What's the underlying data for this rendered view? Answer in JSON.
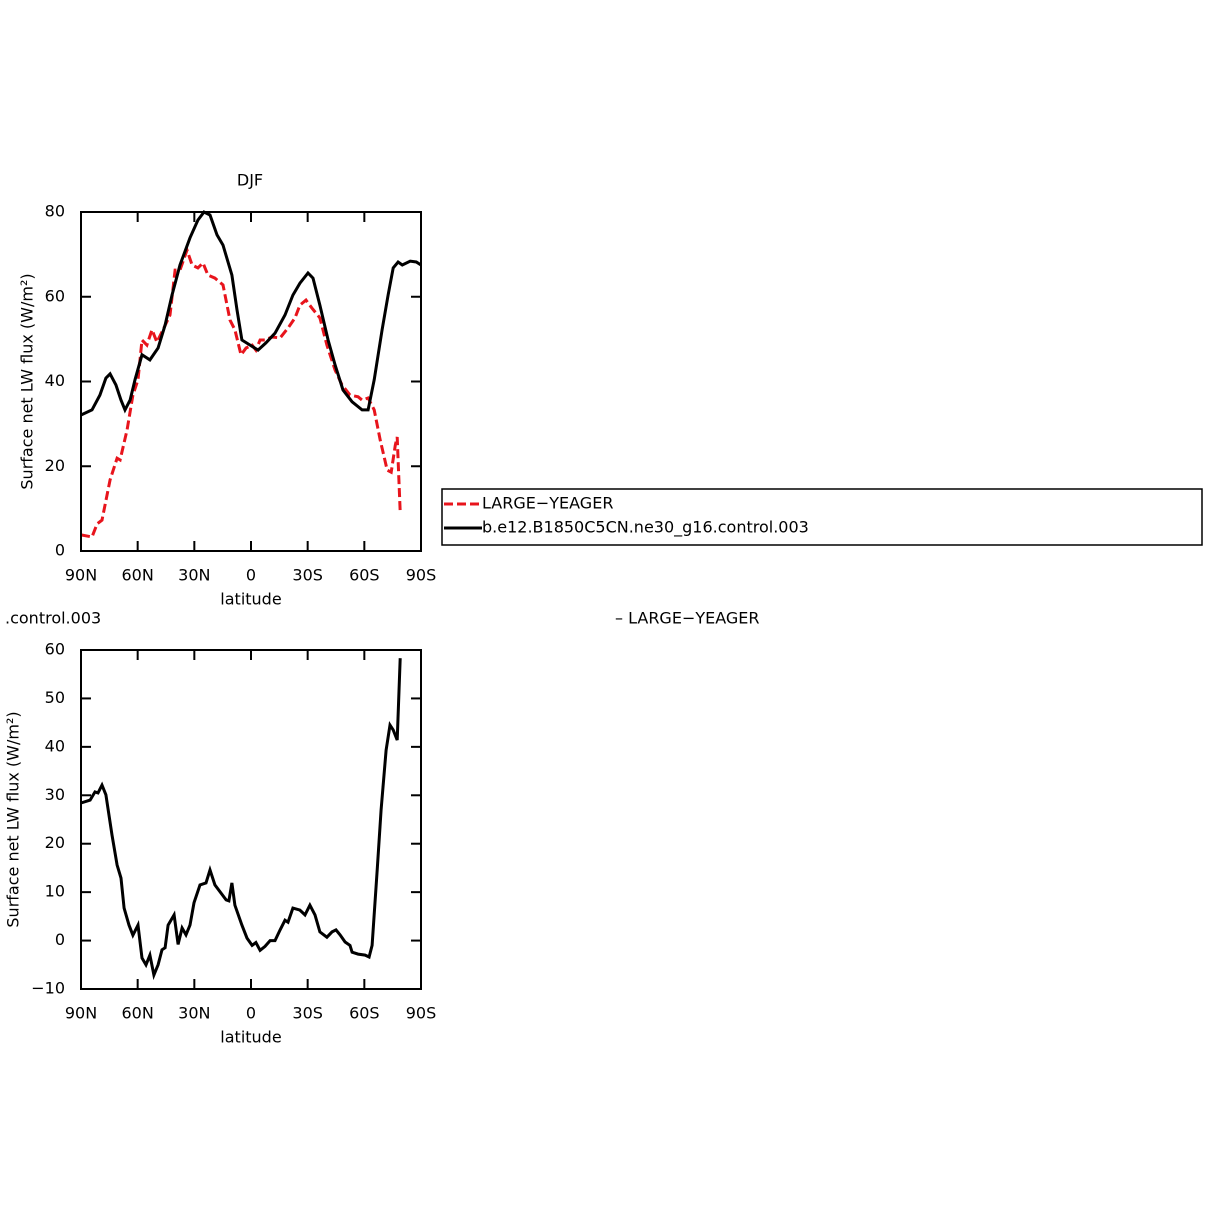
{
  "chart_data": [
    {
      "type": "line",
      "title": "DJF",
      "xlabel": "latitude",
      "ylabel": "Surface net LW flux (W/m²)",
      "xlim": [
        90,
        -90
      ],
      "xticks": [
        {
          "value": 90,
          "label": "90N"
        },
        {
          "value": 60,
          "label": "60N"
        },
        {
          "value": 30,
          "label": "30N"
        },
        0,
        {
          "value": -30,
          "label": "30S"
        },
        {
          "value": -60,
          "label": "60S"
        },
        {
          "value": -90,
          "label": "90S"
        }
      ],
      "ylim": [
        0,
        80
      ],
      "yticks": [
        0,
        20,
        40,
        60,
        80
      ],
      "legend": "right",
      "series": [
        {
          "name": "LARGE−YEAGER",
          "color": "#e8141c",
          "line_style": "dashed",
          "x": [
            90,
            84.2,
            81.5,
            78.9,
            74.6,
            70.9,
            69.3,
            65.6,
            62.5,
            59.8,
            57.7,
            55.1,
            52.4,
            49.8,
            46.6,
            42.9,
            40.2,
            37.6,
            33.9,
            31.2,
            28.1,
            25.4,
            22.8,
            19.1,
            14.8,
            11.1,
            8.5,
            5.3,
            2.6,
            -0.6,
            -2.6,
            -4.8,
            -7.4,
            -11.1,
            -15.4,
            -19.6,
            -23.3,
            -25.9,
            -29.1,
            -32.3,
            -36.5,
            -40.2,
            -44.5,
            -48.2,
            -52.4,
            -56.7,
            -58.8,
            -62,
            -65.2,
            -68.4,
            -72.1,
            -74.2,
            -76.4,
            -77.4,
            -77.9,
            -79
          ],
          "values": [
            3.8,
            3.3,
            6.4,
            7.3,
            16.8,
            21.9,
            21.5,
            28.6,
            36.8,
            40.4,
            49.8,
            48.6,
            52.2,
            49.3,
            52.2,
            55.7,
            66.3,
            66.3,
            71,
            67.5,
            66.8,
            68,
            65.1,
            64.4,
            62.8,
            54.5,
            52.2,
            46.3,
            47.9,
            48.6,
            47.4,
            49.8,
            49.8,
            50.5,
            50.3,
            52.6,
            55,
            58,
            59.2,
            57.3,
            55,
            48.6,
            42.7,
            39.2,
            36.8,
            36.4,
            35.6,
            36.1,
            33.3,
            26.2,
            19.1,
            18.6,
            25,
            26.9,
            21.5,
            9.2
          ]
        },
        {
          "name": "b.e12.B1850C5CN.ne30_g16.control.003",
          "color": "#000000",
          "line_style": "solid",
          "x": [
            90,
            84.2,
            80,
            76.8,
            74.6,
            71.5,
            68.8,
            66.7,
            64,
            61.4,
            57.7,
            53.5,
            49.2,
            45.5,
            41.8,
            37.6,
            32.3,
            28.1,
            24.9,
            21.7,
            18,
            14.8,
            10.1,
            7.4,
            4.8,
            0.5,
            -3.7,
            -7.9,
            -12.7,
            -18,
            -22.2,
            -25.9,
            -30.2,
            -32.8,
            -36.5,
            -40.8,
            -44.5,
            -48.7,
            -53.5,
            -58.8,
            -62,
            -65.2,
            -69.4,
            -72.6,
            -75.3,
            -77.9,
            -80.1,
            -84.3,
            -87.5,
            -90
          ],
          "values": [
            32.1,
            33.3,
            36.8,
            40.8,
            41.8,
            39.2,
            35.6,
            33.3,
            35.6,
            40.4,
            46.3,
            45.1,
            47.9,
            53.3,
            60.4,
            67.5,
            73.9,
            78.1,
            80,
            79.3,
            74.6,
            72.2,
            65.1,
            56.9,
            49.8,
            48.6,
            47.4,
            49.1,
            51.4,
            55.7,
            60.4,
            63.2,
            65.6,
            64.4,
            58,
            49.8,
            43.9,
            38,
            35.2,
            33.3,
            33.3,
            40.4,
            52.2,
            60.4,
            66.8,
            68.2,
            67.5,
            68.4,
            68.2,
            67.5
          ]
        }
      ]
    },
    {
      "type": "line",
      "title": ".control.003",
      "annotation": "– LARGE−YEAGER",
      "xlabel": "latitude",
      "ylabel": "Surface net LW flux (W/m²)",
      "xlim": [
        90,
        -90
      ],
      "xticks": [
        {
          "value": 90,
          "label": "90N"
        },
        {
          "value": 60,
          "label": "60N"
        },
        {
          "value": 30,
          "label": "30N"
        },
        0,
        {
          "value": -30,
          "label": "30S"
        },
        {
          "value": -60,
          "label": "60S"
        },
        {
          "value": -90,
          "label": "90S"
        }
      ],
      "ylim": [
        -10,
        60
      ],
      "yticks": [
        {
          "value": -10,
          "label": "−10"
        },
        0,
        10,
        20,
        30,
        40,
        50,
        60
      ],
      "series": [
        {
          "color": "#000000",
          "line_style": "solid",
          "x": [
            90,
            85.2,
            82.6,
            81,
            78.9,
            76.8,
            73.6,
            70.9,
            68.8,
            67.2,
            64.6,
            62.5,
            59.8,
            57.7,
            55.6,
            53.5,
            51.4,
            49.2,
            47.1,
            45.5,
            43.9,
            40.7,
            38.6,
            36.5,
            34.4,
            32.3,
            30.2,
            27,
            23.8,
            21.7,
            19.1,
            13.2,
            11.7,
            10.1,
            8.5,
            4.8,
            2.1,
            -0.6,
            -2.6,
            -4.8,
            -7.4,
            -10.1,
            -12.7,
            -15.4,
            -18,
            -19.6,
            -22.2,
            -25.9,
            -28.6,
            -31.2,
            -33.9,
            -36.5,
            -40.2,
            -42.9,
            -45,
            -47.1,
            -49.8,
            -52.4,
            -53.5,
            -56.7,
            -60.4,
            -62.5,
            -64.1,
            -66.8,
            -68.9,
            -71.5,
            -73.6,
            -75.3,
            -77.4,
            -79
          ],
          "values": [
            28.4,
            29,
            30.7,
            30.5,
            32.1,
            30.1,
            21.8,
            15.6,
            12.9,
            6.7,
            3.2,
            1.1,
            3.2,
            -3.6,
            -5,
            -3,
            -7.1,
            -5,
            -1.9,
            -1.5,
            3.2,
            5.3,
            -0.8,
            2.6,
            1.2,
            3.2,
            7.8,
            11.5,
            11.9,
            14.6,
            11.5,
            8.4,
            8.2,
            11.9,
            7.3,
            3.2,
            0.5,
            -1,
            -0.4,
            -2,
            -1.2,
            0,
            0,
            2.2,
            4.2,
            3.8,
            6.7,
            6.3,
            5.3,
            7.3,
            5.3,
            1.8,
            0.7,
            1.8,
            2.2,
            1.2,
            -0.3,
            -1,
            -2.4,
            -2.8,
            -3,
            -3.4,
            -1,
            14.6,
            27,
            39.3,
            44.5,
            43.5,
            41.4,
            58.3
          ]
        }
      ]
    }
  ]
}
